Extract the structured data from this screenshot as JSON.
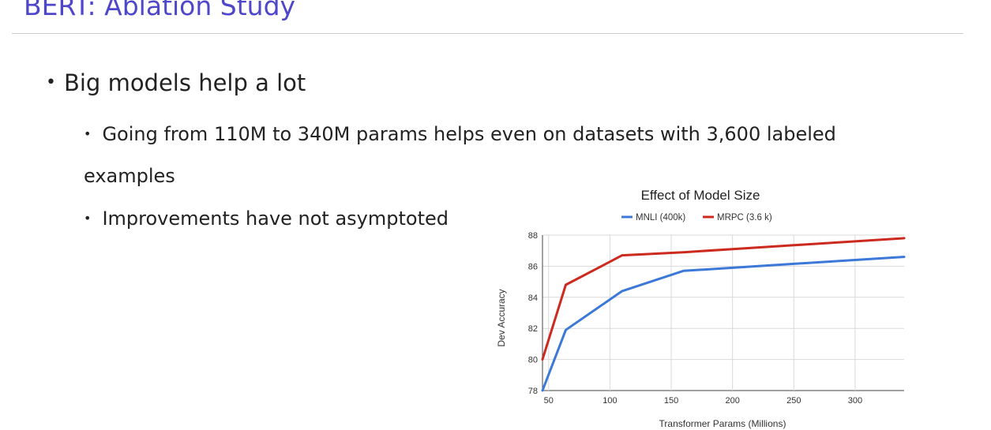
{
  "slide": {
    "title": "BERT: Ablation Study",
    "bullet_main": "Big models help a lot",
    "sub_bullets": [
      "Going from 110M to 340M params helps even on datasets with 3,600 labeled examples",
      "Improvements have not asymptoted"
    ],
    "bullet_glyph": "•"
  },
  "chart_data": {
    "type": "line",
    "title": "Effect of Model Size",
    "xlabel": "Transformer Params (Millions)",
    "ylabel": "Dev Accuracy",
    "xlim": [
      45,
      340
    ],
    "ylim": [
      78,
      88
    ],
    "xticks": [
      50,
      100,
      150,
      200,
      250,
      300
    ],
    "yticks": [
      78,
      80,
      82,
      84,
      86,
      88
    ],
    "grid": true,
    "legend_position": "top",
    "series": [
      {
        "name": "MNLI (400k)",
        "color": "#3c78d8",
        "x": [
          45,
          64,
          110,
          160,
          200,
          250,
          300,
          340
        ],
        "y": [
          78.0,
          81.9,
          84.4,
          85.7,
          85.9,
          86.15,
          86.4,
          86.6
        ]
      },
      {
        "name": "MRPC (3.6 k)",
        "color": "#cc2a1e",
        "x": [
          45,
          64,
          110,
          160,
          200,
          250,
          300,
          340
        ],
        "y": [
          80.0,
          84.8,
          86.7,
          86.9,
          87.1,
          87.35,
          87.6,
          87.8
        ]
      }
    ]
  }
}
